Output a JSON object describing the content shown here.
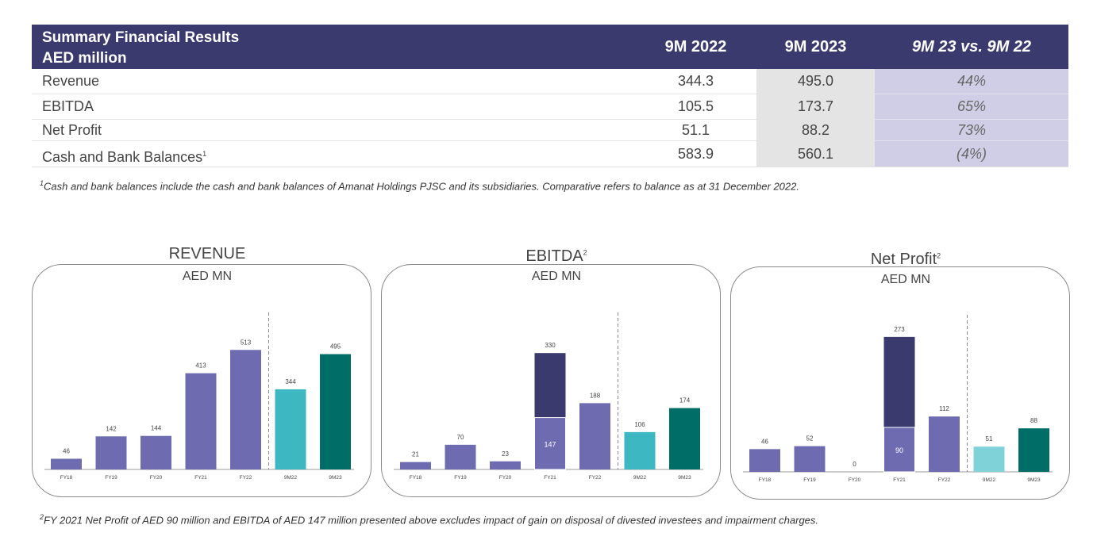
{
  "table": {
    "title_line1": "Summary Financial Results",
    "title_line2": "AED million",
    "columns": [
      "9M 2022",
      "9M 2023",
      "9M 23 vs. 9M 22"
    ],
    "rows": [
      {
        "label": "Revenue",
        "sup": "",
        "v1": "344.3",
        "v2": "495.0",
        "v3": "44%"
      },
      {
        "label": "EBITDA",
        "sup": "",
        "v1": "105.5",
        "v2": "173.7",
        "v3": "65%"
      },
      {
        "label": "Net Profit",
        "sup": "",
        "v1": "51.1",
        "v2": "88.2",
        "v3": "73%"
      },
      {
        "label": "Cash and Bank Balances",
        "sup": "1",
        "v1": "583.9",
        "v2": "560.1",
        "v3": "(4%)"
      }
    ]
  },
  "footnote1": {
    "marker": "1",
    "text": "Cash and bank balances include the cash and bank balances of Amanat Holdings PJSC and its subsidiaries. Comparative refers to balance as at 31 December 2022."
  },
  "footnote2": {
    "marker": "2",
    "text": "FY 2021 Net Profit of AED 90 million and EBITDA  of AED 147 million presented above excludes impact of gain on disposal of divested investees and impairment charges."
  },
  "colors": {
    "header_bg": "#3b3a6e",
    "bar_purple": "#6f6bb1",
    "bar_dark": "#3b3a6e",
    "bar_teal_light": "#3db8c2",
    "bar_teal_dark": "#006e66",
    "bar_teal_pale": "#7fd3d8",
    "grey_cell": "#e4e4e4",
    "lavender_cell": "#cfcee6"
  },
  "chart_data": [
    {
      "type": "bar",
      "title": "REVENUE",
      "subtitle": "AED MN",
      "categories": [
        "FY18",
        "FY19",
        "FY20",
        "FY21",
        "FY22",
        "9M22",
        "9M23"
      ],
      "values": [
        46,
        142,
        144,
        413,
        513,
        344,
        495
      ],
      "labels": [
        "46",
        "142",
        "144",
        "413",
        "513",
        "344",
        "495"
      ],
      "colors": [
        "#6f6bb1",
        "#6f6bb1",
        "#6f6bb1",
        "#6f6bb1",
        "#6f6bb1",
        "#3db8c2",
        "#006e66"
      ],
      "ylim": [
        0,
        600
      ]
    },
    {
      "type": "bar",
      "title": "EBITDA",
      "title_sup": "2",
      "subtitle": "AED MN",
      "categories": [
        "FY18",
        "FY19",
        "FY20",
        "FY21",
        "FY22",
        "9M22",
        "9M23"
      ],
      "values": [
        21,
        70,
        23,
        330,
        188,
        106,
        174
      ],
      "labels": [
        "21",
        "70",
        "23",
        "330",
        "188",
        "106",
        "174"
      ],
      "stack_base": [
        null,
        null,
        null,
        147,
        null,
        null,
        null
      ],
      "stack_base_labels": [
        "",
        "",
        "",
        "147",
        "",
        "",
        ""
      ],
      "colors": [
        "#6f6bb1",
        "#6f6bb1",
        "#6f6bb1",
        "#3b3a6e",
        "#6f6bb1",
        "#3db8c2",
        "#006e66"
      ],
      "ylim": [
        0,
        400
      ]
    },
    {
      "type": "bar",
      "title": "Net Profit",
      "title_sup": "2",
      "subtitle": "AED MN",
      "categories": [
        "FY18",
        "FY19",
        "FY20",
        "FY21",
        "FY22",
        "9M22",
        "9M23"
      ],
      "values": [
        46,
        52,
        0,
        273,
        112,
        51,
        88
      ],
      "labels": [
        "46",
        "52",
        "0",
        "273",
        "112",
        "51",
        "88"
      ],
      "stack_base": [
        null,
        null,
        null,
        90,
        null,
        null,
        null
      ],
      "stack_base_labels": [
        "",
        "",
        "",
        "90",
        "",
        "",
        ""
      ],
      "colors": [
        "#6f6bb1",
        "#6f6bb1",
        "#6f6bb1",
        "#3b3a6e",
        "#6f6bb1",
        "#7fd3d8",
        "#006e66"
      ],
      "ylim": [
        0,
        300
      ]
    }
  ]
}
